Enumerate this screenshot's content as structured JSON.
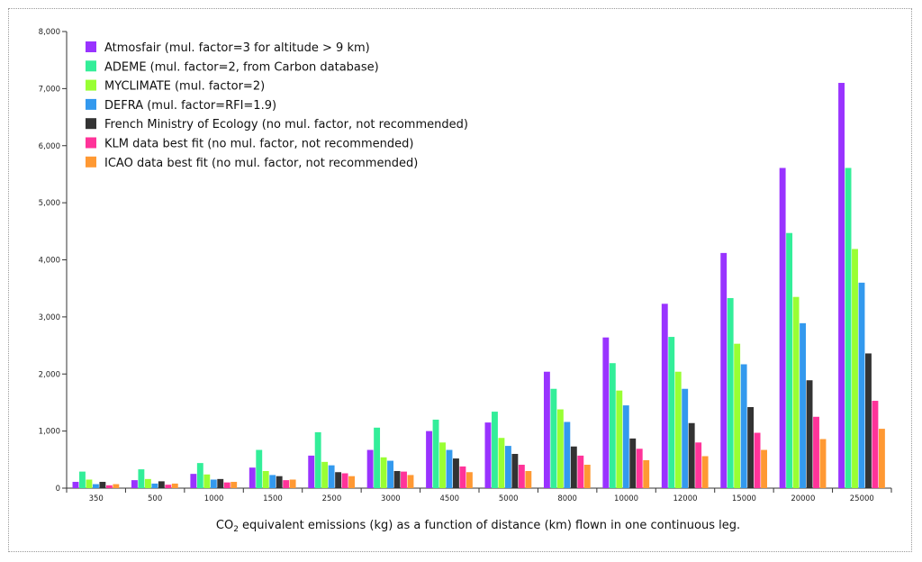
{
  "chart_data": {
    "type": "bar",
    "caption": {
      "pre": "CO",
      "sub": "2",
      "post": " equivalent emissions (kg) as a function of distance (km) flown in one continuous leg."
    },
    "categories": [
      "350",
      "500",
      "1000",
      "1500",
      "2500",
      "3000",
      "4500",
      "5000",
      "8000",
      "10000",
      "12000",
      "15000",
      "20000",
      "25000"
    ],
    "ylim": [
      0,
      8000
    ],
    "yticks": [
      0,
      1000,
      2000,
      3000,
      4000,
      5000,
      6000,
      7000,
      8000
    ],
    "ytick_labels": [
      "0",
      "1,000",
      "2,000",
      "3,000",
      "4,000",
      "5,000",
      "6,000",
      "7,000",
      "8,000"
    ],
    "legend_position": "top-left",
    "series": [
      {
        "name": "Atmosfair (mul. factor=3 for altitude > 9 km)",
        "color": "#9933ff",
        "values": [
          110,
          140,
          250,
          360,
          570,
          670,
          1000,
          1150,
          2040,
          2640,
          3230,
          4120,
          5610,
          7100
        ]
      },
      {
        "name": "ADEME (mul. factor=2, from Carbon database)",
        "color": "#33ee99",
        "values": [
          290,
          330,
          440,
          670,
          980,
          1060,
          1200,
          1340,
          1740,
          2190,
          2650,
          3330,
          4470,
          5610
        ]
      },
      {
        "name": "MYCLIMATE (mul. factor=2)",
        "color": "#99ff33",
        "values": [
          150,
          160,
          240,
          300,
          460,
          540,
          800,
          880,
          1380,
          1710,
          2040,
          2530,
          3350,
          4190
        ]
      },
      {
        "name": "DEFRA (mul. factor=RFI=1.9)",
        "color": "#3399ee",
        "values": [
          70,
          80,
          150,
          230,
          400,
          480,
          670,
          740,
          1160,
          1450,
          1740,
          2170,
          2890,
          3600
        ]
      },
      {
        "name": "French Ministry of Ecology (no mul. factor, not recommended)",
        "color": "#333333",
        "values": [
          110,
          120,
          160,
          210,
          280,
          300,
          520,
          600,
          730,
          870,
          1140,
          1420,
          1890,
          2360
        ]
      },
      {
        "name": "KLM data best fit (no mul. factor, not recommended)",
        "color": "#ff3399",
        "values": [
          50,
          60,
          100,
          140,
          260,
          290,
          380,
          410,
          570,
          690,
          800,
          970,
          1250,
          1530
        ]
      },
      {
        "name": "ICAO data best fit (no mul. factor, not recommended)",
        "color": "#ff9933",
        "values": [
          70,
          80,
          110,
          150,
          210,
          230,
          280,
          300,
          410,
          490,
          560,
          670,
          860,
          1040
        ]
      }
    ]
  }
}
